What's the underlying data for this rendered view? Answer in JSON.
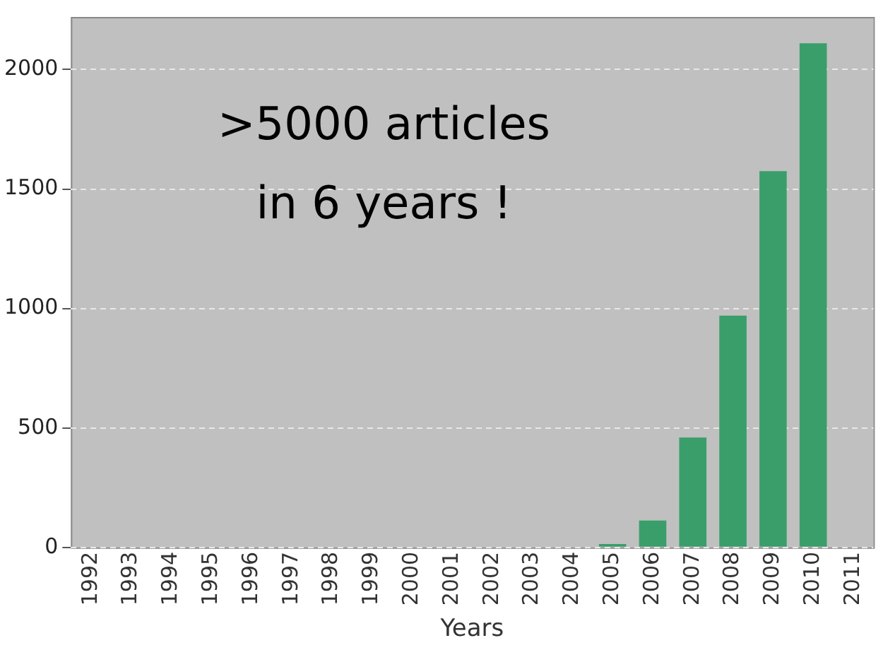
{
  "chart_data": {
    "type": "bar",
    "xlabel": "Years",
    "categories": [
      "1992",
      "1993",
      "1994",
      "1995",
      "1996",
      "1997",
      "1998",
      "1999",
      "2000",
      "2001",
      "2002",
      "2003",
      "2004",
      "2005",
      "2006",
      "2007",
      "2008",
      "2009",
      "2010",
      "2011"
    ],
    "values": [
      0,
      0,
      0,
      0,
      0,
      0,
      0,
      0,
      0,
      0,
      0,
      0,
      0,
      14,
      113,
      460,
      970,
      1575,
      2110,
      0
    ],
    "color": "#3a9e6b",
    "ylim": [
      0,
      2220
    ],
    "yticks": [
      0,
      500,
      1000,
      1500,
      2000
    ],
    "grid": "y",
    "annotations": [
      ">5000 articles\nin 6 years !"
    ]
  }
}
